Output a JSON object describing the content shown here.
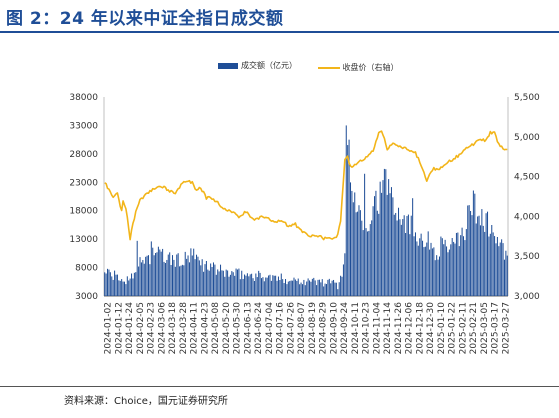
{
  "title": "图 2：24 年以来中证全指日成交额",
  "source": "资料来源：Choice，国元证券研究所",
  "colors": {
    "bar": "#1f4e97",
    "line": "#f2b51a",
    "title": "#1f4e97"
  },
  "chart_data": {
    "type": "bar+line",
    "legend": {
      "placement": "top-center",
      "entries": [
        "成交额（亿元）",
        "收盘价（右轴）"
      ]
    },
    "y_left": {
      "min": 3000,
      "max": 38000,
      "ticks": [
        3000,
        8000,
        13000,
        18000,
        23000,
        28000,
        33000,
        38000
      ]
    },
    "y_right": {
      "min": 3000,
      "max": 5500,
      "ticks": [
        "3,000",
        "3,500",
        "4,000",
        "4,500",
        "5,000",
        "5,500"
      ]
    },
    "x_tick_labels": [
      "2024-01-02",
      "2024-01-12",
      "2024-01-24",
      "2024-02-05",
      "2024-02-23",
      "2024-03-06",
      "2024-03-18",
      "2024-03-28",
      "2024-04-11",
      "2024-04-23",
      "2024-05-08",
      "2024-05-20",
      "2024-05-30",
      "2024-06-13",
      "2024-06-24",
      "2024-07-04",
      "2024-07-16",
      "2024-07-26",
      "2024-08-07",
      "2024-08-19",
      "2024-08-29",
      "2024-09-10",
      "2024-09-24",
      "2024-10-11",
      "2024-10-23",
      "2024-11-04",
      "2024-11-14",
      "2024-11-26",
      "2024-12-06",
      "2024-12-18",
      "2024-12-30",
      "2025-01-10",
      "2025-01-22",
      "2025-02-11",
      "2025-02-21",
      "2025-03-05",
      "2025-03-17",
      "2025-03-27"
    ],
    "series": [
      {
        "name": "成交额（亿元）",
        "type": "bar",
        "axis": "left",
        "anchors": [
          [
            0,
            7500
          ],
          [
            5,
            6800
          ],
          [
            10,
            6200
          ],
          [
            15,
            5600
          ],
          [
            20,
            7200
          ],
          [
            24,
            8600
          ],
          [
            27,
            9000
          ],
          [
            30,
            10400
          ],
          [
            32,
            9400
          ],
          [
            35,
            11200
          ],
          [
            40,
            10200
          ],
          [
            45,
            9600
          ],
          [
            55,
            9200
          ],
          [
            62,
            10200
          ],
          [
            70,
            8600
          ],
          [
            80,
            7600
          ],
          [
            90,
            7000
          ],
          [
            100,
            6800
          ],
          [
            110,
            6600
          ],
          [
            120,
            6200
          ],
          [
            130,
            6000
          ],
          [
            140,
            5800
          ],
          [
            150,
            5600
          ],
          [
            160,
            5400
          ],
          [
            165,
            5000
          ],
          [
            168,
            6800
          ],
          [
            170,
            12000
          ],
          [
            172,
            26000
          ],
          [
            175,
            22000
          ],
          [
            180,
            18000
          ],
          [
            185,
            16000
          ],
          [
            190,
            18500
          ],
          [
            195,
            21000
          ],
          [
            200,
            23500
          ],
          [
            205,
            20000
          ],
          [
            210,
            17500
          ],
          [
            215,
            16000
          ],
          [
            220,
            14500
          ],
          [
            225,
            13500
          ],
          [
            230,
            12500
          ],
          [
            235,
            10500
          ],
          [
            240,
            13000
          ],
          [
            245,
            11000
          ],
          [
            250,
            13000
          ],
          [
            255,
            15000
          ],
          [
            258,
            18000
          ],
          [
            262,
            19500
          ],
          [
            265,
            17000
          ],
          [
            270,
            16500
          ],
          [
            275,
            14000
          ],
          [
            280,
            12500
          ],
          [
            283,
            10500
          ],
          [
            285,
            9500
          ]
        ],
        "spikes": [
          [
            23,
            12700
          ],
          [
            33,
            12600
          ],
          [
            76,
            8100
          ],
          [
            171,
            33000
          ],
          [
            173,
            30500
          ],
          [
            184,
            24500
          ],
          [
            192,
            21500
          ],
          [
            199,
            25300
          ],
          [
            218,
            20200
          ],
          [
            246,
            13200
          ],
          [
            262,
            21000
          ]
        ]
      },
      {
        "name": "收盘价（右轴）",
        "type": "line",
        "axis": "right",
        "anchors": [
          [
            0,
            4430
          ],
          [
            3,
            4330
          ],
          [
            6,
            4240
          ],
          [
            9,
            4300
          ],
          [
            12,
            4060
          ],
          [
            13,
            4180
          ],
          [
            15,
            4110
          ],
          [
            18,
            3720
          ],
          [
            20,
            3900
          ],
          [
            22,
            4070
          ],
          [
            25,
            4200
          ],
          [
            30,
            4290
          ],
          [
            35,
            4350
          ],
          [
            40,
            4380
          ],
          [
            45,
            4330
          ],
          [
            50,
            4300
          ],
          [
            55,
            4410
          ],
          [
            58,
            4450
          ],
          [
            62,
            4420
          ],
          [
            65,
            4330
          ],
          [
            68,
            4360
          ],
          [
            72,
            4230
          ],
          [
            75,
            4230
          ],
          [
            80,
            4170
          ],
          [
            85,
            4090
          ],
          [
            90,
            4060
          ],
          [
            95,
            4000
          ],
          [
            100,
            4060
          ],
          [
            105,
            3960
          ],
          [
            110,
            3990
          ],
          [
            115,
            3990
          ],
          [
            120,
            3920
          ],
          [
            125,
            3950
          ],
          [
            130,
            3880
          ],
          [
            135,
            3900
          ],
          [
            140,
            3800
          ],
          [
            145,
            3760
          ],
          [
            150,
            3770
          ],
          [
            155,
            3720
          ],
          [
            160,
            3740
          ],
          [
            163,
            3720
          ],
          [
            165,
            3790
          ],
          [
            167,
            3950
          ],
          [
            169,
            4450
          ],
          [
            170,
            4700
          ],
          [
            172,
            4750
          ],
          [
            174,
            4620
          ],
          [
            178,
            4650
          ],
          [
            185,
            4750
          ],
          [
            190,
            4820
          ],
          [
            194,
            5050
          ],
          [
            196,
            5080
          ],
          [
            200,
            4850
          ],
          [
            205,
            4920
          ],
          [
            210,
            4860
          ],
          [
            215,
            4840
          ],
          [
            220,
            4800
          ],
          [
            224,
            4640
          ],
          [
            226,
            4550
          ],
          [
            228,
            4430
          ],
          [
            230,
            4520
          ],
          [
            233,
            4600
          ],
          [
            236,
            4580
          ],
          [
            240,
            4650
          ],
          [
            245,
            4700
          ],
          [
            250,
            4760
          ],
          [
            255,
            4850
          ],
          [
            260,
            4900
          ],
          [
            265,
            4950
          ],
          [
            270,
            4960
          ],
          [
            273,
            5050
          ],
          [
            276,
            5050
          ],
          [
            279,
            4900
          ],
          [
            282,
            4850
          ],
          [
            285,
            4830
          ]
        ]
      }
    ]
  }
}
